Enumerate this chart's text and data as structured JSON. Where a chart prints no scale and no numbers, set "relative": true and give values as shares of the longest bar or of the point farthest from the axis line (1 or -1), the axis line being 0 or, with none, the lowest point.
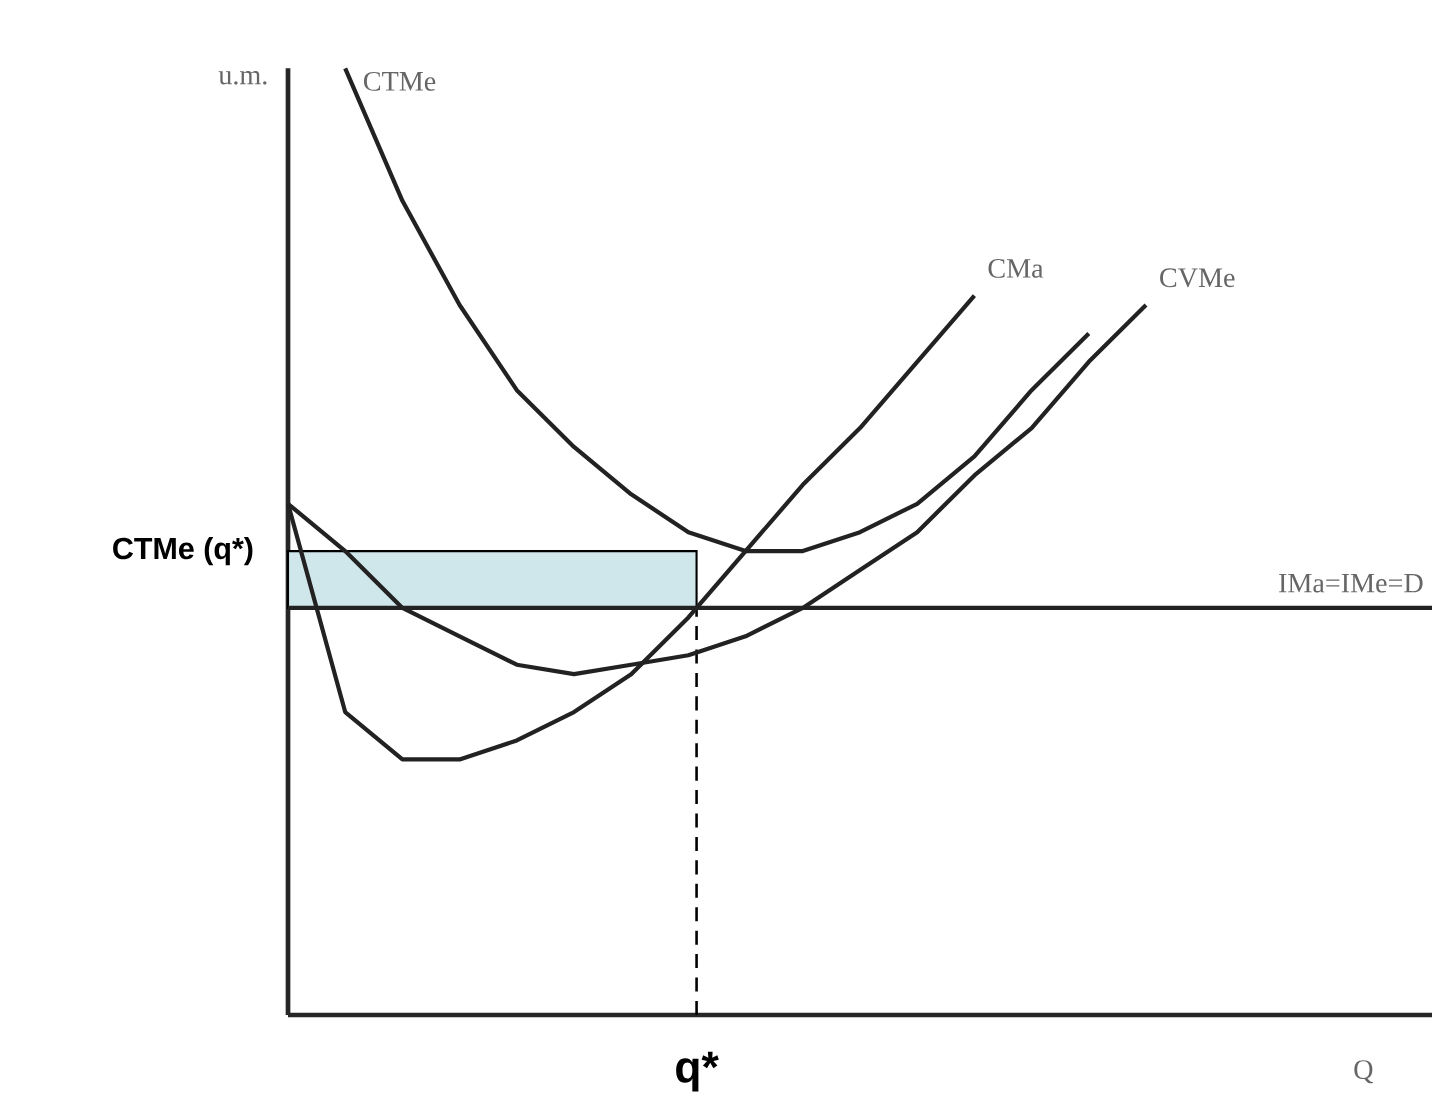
{
  "chart_data": {
    "type": "line",
    "relative": true,
    "xlabel": "Q",
    "ylabel": "u.m.",
    "marker": "none",
    "line_style": "solid",
    "categories": [
      null,
      null,
      null,
      null,
      null,
      null,
      null,
      null,
      null,
      null,
      null,
      null,
      null,
      null,
      null,
      null,
      null,
      null,
      null,
      null,
      null
    ],
    "annotations": [
      "q*"
    ],
    "series": [
      {
        "name": "CTMe",
        "color": "#222222",
        "values": [
          null,
          1.0,
          0.86,
          0.75,
          0.66,
          0.6,
          0.55,
          0.51,
          0.49,
          0.49,
          0.51,
          0.54,
          0.59,
          0.66,
          0.72,
          null,
          null,
          null,
          null,
          null,
          null
        ]
      },
      {
        "name": "CMa",
        "color": "#222222",
        "values": [
          0.54,
          0.32,
          0.27,
          0.27,
          0.29,
          0.32,
          0.36,
          0.42,
          0.49,
          0.56,
          0.62,
          0.69,
          0.76,
          null,
          null,
          null,
          null,
          null,
          null,
          null,
          null
        ]
      },
      {
        "name": "CVMe",
        "color": "#222222",
        "values": [
          0.54,
          0.49,
          0.43,
          0.4,
          0.37,
          0.36,
          0.37,
          0.38,
          0.4,
          0.43,
          0.47,
          0.51,
          0.57,
          0.62,
          0.69,
          0.75,
          null,
          null,
          null,
          null,
          null
        ]
      },
      {
        "name": "IMa=IMe=D",
        "color": "#222222",
        "values": [
          0.43,
          0.43,
          0.43,
          0.43,
          0.43,
          0.43,
          0.43,
          0.43,
          0.43,
          0.43,
          0.43,
          0.43,
          0.43,
          0.43,
          0.43,
          0.43,
          0.43,
          0.43,
          0.43,
          0.43,
          0.43
        ]
      }
    ],
    "bands": [
      {
        "axis": "y",
        "from": 0.43,
        "to": 0.49,
        "label": "CTMe (q*)",
        "color": "#cfe6ea"
      }
    ]
  }
}
